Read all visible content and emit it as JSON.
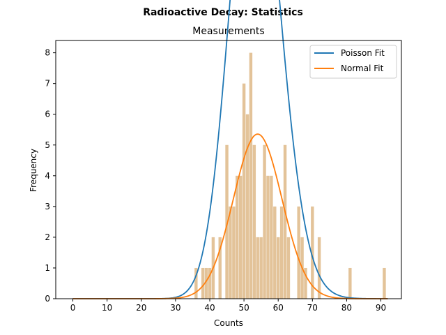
{
  "chart_data": {
    "type": "bar",
    "suptitle": "Radioactive Decay: Statistics",
    "title": "Measurements",
    "xlabel": "Counts",
    "ylabel": "Frequency",
    "xlim": [
      -5,
      96
    ],
    "ylim": [
      0,
      8.4
    ],
    "xticks": [
      0,
      10,
      20,
      30,
      40,
      50,
      60,
      70,
      80,
      90
    ],
    "yticks": [
      0,
      1,
      2,
      3,
      4,
      5,
      6,
      7,
      8
    ],
    "legend_position": "top-right",
    "histogram": {
      "color": "#deb887",
      "bins": [
        {
          "x": 36,
          "count": 1
        },
        {
          "x": 38,
          "count": 1
        },
        {
          "x": 39,
          "count": 1
        },
        {
          "x": 40,
          "count": 1
        },
        {
          "x": 41,
          "count": 2
        },
        {
          "x": 43,
          "count": 2
        },
        {
          "x": 45,
          "count": 5
        },
        {
          "x": 46,
          "count": 3
        },
        {
          "x": 47,
          "count": 3
        },
        {
          "x": 48,
          "count": 4
        },
        {
          "x": 49,
          "count": 4
        },
        {
          "x": 50,
          "count": 7
        },
        {
          "x": 51,
          "count": 6
        },
        {
          "x": 52,
          "count": 8
        },
        {
          "x": 53,
          "count": 5
        },
        {
          "x": 54,
          "count": 2
        },
        {
          "x": 55,
          "count": 2
        },
        {
          "x": 56,
          "count": 5
        },
        {
          "x": 57,
          "count": 4
        },
        {
          "x": 58,
          "count": 4
        },
        {
          "x": 59,
          "count": 3
        },
        {
          "x": 60,
          "count": 2
        },
        {
          "x": 61,
          "count": 3
        },
        {
          "x": 62,
          "count": 5
        },
        {
          "x": 63,
          "count": 2
        },
        {
          "x": 65,
          "count": 0
        },
        {
          "x": 66,
          "count": 3
        },
        {
          "x": 67,
          "count": 2
        },
        {
          "x": 68,
          "count": 1
        },
        {
          "x": 70,
          "count": 3
        },
        {
          "x": 72,
          "count": 2
        },
        {
          "x": 81,
          "count": 1
        },
        {
          "x": 91,
          "count": 1
        }
      ]
    },
    "series": [
      {
        "name": "Poisson Fit",
        "type": "poisson",
        "mu": 53.5,
        "scale": 290,
        "color": "#1f77b4"
      },
      {
        "name": "Normal Fit",
        "type": "normal",
        "mu": 54.0,
        "sigma": 7.1,
        "scale": 95.3,
        "color": "#ff7f0e"
      }
    ]
  }
}
